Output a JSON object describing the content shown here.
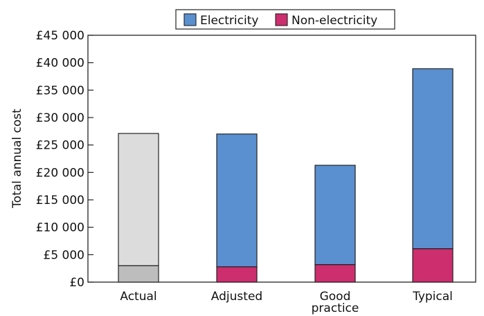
{
  "chart_data": {
    "type": "bar",
    "stacked": true,
    "title": "",
    "xlabel": "",
    "ylabel": "Total annual cost",
    "ylim": [
      0,
      45000
    ],
    "yticks": [
      0,
      5000,
      10000,
      15000,
      20000,
      25000,
      30000,
      35000,
      40000,
      45000
    ],
    "ytick_labels": [
      "£0",
      "£5 000",
      "£10 000",
      "£15 000",
      "£20 000",
      "£25 000",
      "£30 000",
      "£35 000",
      "£40 000",
      "£45 000"
    ],
    "categories": [
      {
        "lines": [
          "Actual"
        ]
      },
      {
        "lines": [
          "Adjusted"
        ]
      },
      {
        "lines": [
          "Good",
          "practice"
        ]
      },
      {
        "lines": [
          "Typical"
        ]
      }
    ],
    "series": [
      {
        "name": "Non-electricity",
        "color": "#cc2e6e",
        "values": [
          3000,
          2800,
          3200,
          6100
        ]
      },
      {
        "name": "Electricity",
        "color": "#5a8fd0",
        "values": [
          24100,
          24200,
          18100,
          32800
        ]
      }
    ],
    "legend": {
      "placement": "top",
      "entries": [
        {
          "name": "Electricity",
          "color": "#5a8fd0"
        },
        {
          "name": "Non-electricity",
          "color": "#cc2e6e"
        }
      ]
    },
    "category_colors_override": {
      "Actual": {
        "Non-electricity": "#bdbdbd",
        "Electricity": "#dcdcdc"
      }
    },
    "grid": false
  }
}
